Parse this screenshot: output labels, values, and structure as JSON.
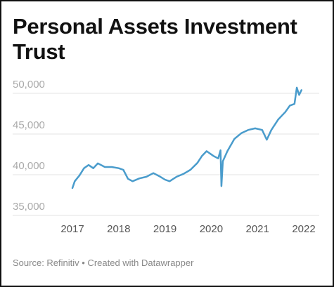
{
  "chart_data": {
    "type": "line",
    "title": "Personal Assets Investment Trust",
    "source": "Source: Refinitiv • Created with Datawrapper",
    "color": "#4a9ccc",
    "x": [
      2017.0,
      2017.05,
      2017.15,
      2017.25,
      2017.35,
      2017.45,
      2017.55,
      2017.7,
      2017.85,
      2018.0,
      2018.1,
      2018.2,
      2018.3,
      2018.45,
      2018.6,
      2018.75,
      2018.9,
      2019.0,
      2019.1,
      2019.25,
      2019.4,
      2019.55,
      2019.7,
      2019.8,
      2019.9,
      2020.05,
      2020.15,
      2020.2,
      2020.22,
      2020.25,
      2020.35,
      2020.5,
      2020.65,
      2020.8,
      2020.95,
      2021.1,
      2021.2,
      2021.3,
      2021.45,
      2021.6,
      2021.7,
      2021.8,
      2021.85,
      2021.9,
      2021.95
    ],
    "values": [
      38360,
      39200,
      39900,
      40800,
      41200,
      40800,
      41400,
      40950,
      40950,
      40800,
      40600,
      39500,
      39200,
      39550,
      39750,
      40200,
      39750,
      39400,
      39200,
      39750,
      40100,
      40600,
      41450,
      42300,
      42900,
      42300,
      42000,
      43000,
      38600,
      41650,
      42900,
      44400,
      45100,
      45500,
      45700,
      45500,
      44300,
      45500,
      46800,
      47700,
      48500,
      48700,
      50700,
      49800,
      50400
    ],
    "xlim": [
      2017,
      2022
    ],
    "xticks": [
      2017,
      2018,
      2019,
      2020,
      2021,
      2022
    ],
    "ylim": [
      35000,
      50000
    ],
    "yticks": [
      {
        "value": 35000,
        "label": "35,000"
      },
      {
        "value": 40000,
        "label": "40,000"
      },
      {
        "value": 45000,
        "label": "45,000"
      },
      {
        "value": 50000,
        "label": "50,000"
      }
    ],
    "grid": true
  }
}
